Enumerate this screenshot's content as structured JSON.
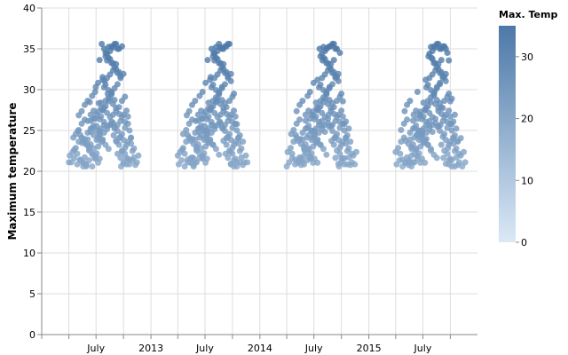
{
  "chart_data": {
    "type": "scatter",
    "title": "",
    "xlabel": "",
    "ylabel": "Maximum temperature",
    "ylim": [
      0,
      40
    ],
    "yticks": [
      0,
      5,
      10,
      15,
      20,
      25,
      30,
      35,
      40
    ],
    "xlim": [
      "2012-01-01",
      "2015-12-31"
    ],
    "xticks": [
      {
        "label": "July",
        "date": "2012-07-01"
      },
      {
        "label": "2013",
        "date": "2013-01-01"
      },
      {
        "label": "July",
        "date": "2013-07-01"
      },
      {
        "label": "2014",
        "date": "2014-01-01"
      },
      {
        "label": "July",
        "date": "2014-07-01"
      },
      {
        "label": "2015",
        "date": "2015-01-01"
      },
      {
        "label": "July",
        "date": "2015-07-01"
      }
    ],
    "grid": true,
    "legend": {
      "title": "Max. Temp",
      "placement": "right",
      "type": "gradient",
      "domain": [
        0,
        35
      ],
      "ticks": [
        0,
        10,
        20,
        30
      ],
      "color_low": "#dbe9f6",
      "color_high": "#4c78a8"
    },
    "color_encoding": "Maximum temperature",
    "opacity": 0.8,
    "series": [
      {
        "x": [
          "2012-04-01",
          "2012-04-16",
          "2012-05-01",
          "2012-05-16",
          "2012-05-31",
          "2012-06-10",
          "2012-06-20",
          "2012-06-30",
          "2012-07-10",
          "2012-07-20",
          "2012-07-30",
          "2012-08-09",
          "2012-08-19",
          "2012-08-29",
          "2012-09-08",
          "2012-09-23"
        ],
        "y": [
          21.1,
          23.3,
          25.6,
          22.2,
          24.4,
          26.7,
          23.9,
          27.8,
          30.6,
          34.4,
          33.9,
          28.9,
          26.1,
          24.4,
          22.8,
          21.1
        ]
      }
    ]
  }
}
